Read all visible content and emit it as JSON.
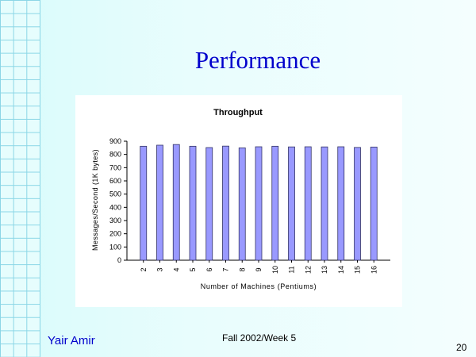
{
  "slide": {
    "title": "Performance",
    "author": "Yair Amir",
    "course": "Fall 2002/Week 5",
    "page": "20"
  },
  "colors": {
    "bar_fill": "#9999ff",
    "bar_stroke": "#333366",
    "title": "#0000cc"
  },
  "chart_data": {
    "type": "bar",
    "title": "Throughput",
    "xlabel": "Number of Machines (Pentiums)",
    "ylabel": "Messages/Second (1K bytes)",
    "categories": [
      "2",
      "3",
      "4",
      "5",
      "6",
      "7",
      "8",
      "9",
      "10",
      "11",
      "12",
      "13",
      "14",
      "15",
      "16"
    ],
    "values": [
      862,
      870,
      875,
      862,
      852,
      863,
      850,
      858,
      862,
      857,
      858,
      857,
      858,
      853,
      856
    ],
    "ylim": [
      0,
      900
    ],
    "yticks": [
      0,
      100,
      200,
      300,
      400,
      500,
      600,
      700,
      800,
      900
    ],
    "grid": false,
    "legend": "none"
  }
}
